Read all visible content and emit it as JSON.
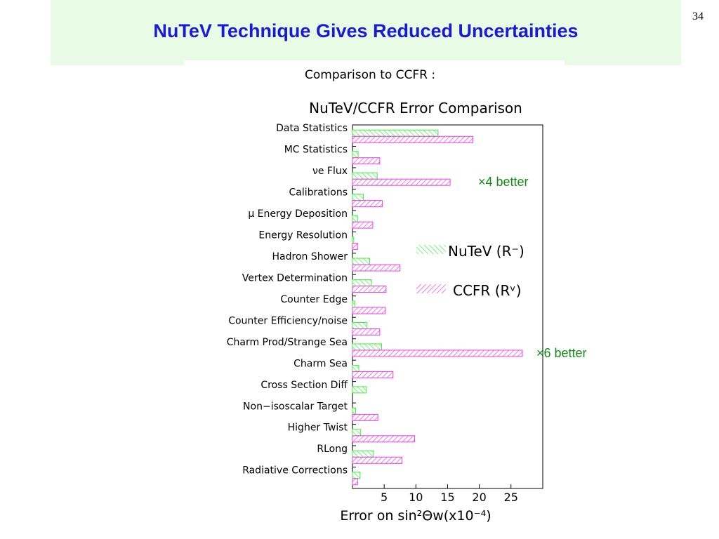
{
  "slide": {
    "title": "NuTeV Technique Gives Reduced Uncertainties",
    "page_number": "34"
  },
  "annotations": {
    "x4": "×4 better",
    "x6": "×6 better"
  },
  "chart_data": {
    "type": "bar",
    "orientation": "horizontal",
    "heading": "Comparison to CCFR :",
    "title": "NuTeV/CCFR Error Comparison",
    "xlabel": "Error on sin²Θw(x10⁻⁴)",
    "xlim": [
      0,
      30
    ],
    "xticks": [
      5,
      10,
      15,
      20,
      25
    ],
    "categories": [
      "Data Statistics",
      "MC Statistics",
      "νe Flux",
      "Calibrations",
      "μ Energy Deposition",
      "Energy Resolution",
      "Hadron Shower",
      "Vertex Determination",
      "Counter Edge",
      "Counter Efficiency/noise",
      "Charm Prod/Strange Sea",
      "Charm Sea",
      "Cross Section Diff",
      "Non−isoscalar Target",
      "Higher Twist",
      "RLong",
      "Radiative Corrections"
    ],
    "series": [
      {
        "name": "NuTeV (R⁻)",
        "color": "#3ef03e",
        "values": [
          13.5,
          0.9,
          3.9,
          1.7,
          0.8,
          0.2,
          2.7,
          3.0,
          0.4,
          2.3,
          4.6,
          1.0,
          2.2,
          0.5,
          1.3,
          3.3,
          1.2
        ]
      },
      {
        "name": "CCFR (Rᵛ)",
        "color": "#ee3ee8",
        "values": [
          19.0,
          4.3,
          15.4,
          4.7,
          3.2,
          0.8,
          7.5,
          5.3,
          5.2,
          4.3,
          26.8,
          6.4,
          0.0,
          4.0,
          9.8,
          7.8,
          0.8
        ]
      }
    ],
    "legend": "right",
    "grid": false
  }
}
